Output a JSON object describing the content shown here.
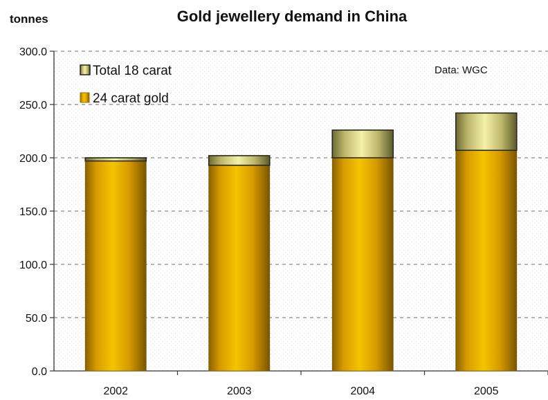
{
  "chart_data": {
    "type": "bar",
    "stacked": true,
    "title": "Gold jewellery demand in China",
    "unit_label": "tonnes",
    "source_note": "Data: WGC",
    "categories": [
      "2002",
      "2003",
      "2004",
      "2005"
    ],
    "series": [
      {
        "name": "24 carat gold",
        "values": [
          197.0,
          193.0,
          200.0,
          207.0
        ],
        "color": "#e0a800"
      },
      {
        "name": "Total 18 carat",
        "values": [
          3.0,
          9.0,
          26.0,
          35.0
        ],
        "color": "#e8e59a"
      }
    ],
    "ylim": [
      0,
      300
    ],
    "yticks": [
      "0.0",
      "50.0",
      "100.0",
      "150.0",
      "200.0",
      "250.0",
      "300.0"
    ],
    "grid": true,
    "legend_position": "top-left"
  }
}
